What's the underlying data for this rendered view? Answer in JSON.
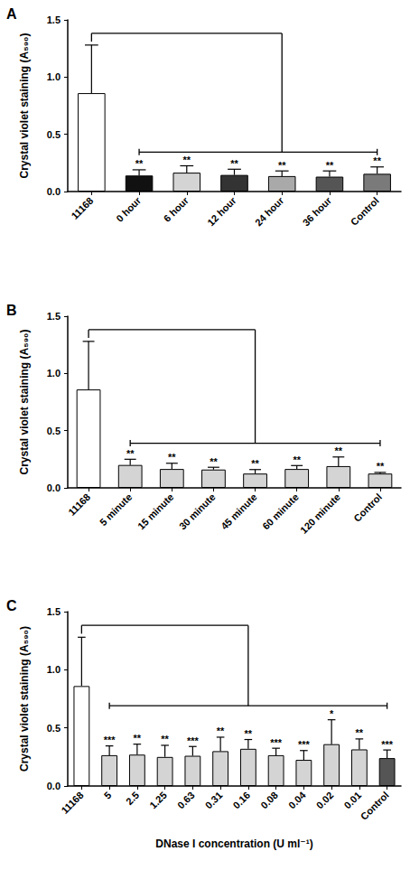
{
  "chart_data": [
    {
      "type": "bar",
      "title": "A",
      "y_label": "Crystal violet staining (A₅₉₀)",
      "categories": [
        "11168",
        "0 hour",
        "6 hour",
        "12 hour",
        "24 hour",
        "36 hour",
        "Control"
      ],
      "values": [
        0.86,
        0.14,
        0.165,
        0.145,
        0.135,
        0.13,
        0.155
      ],
      "errors": [
        0.42,
        0.05,
        0.06,
        0.05,
        0.045,
        0.05,
        0.06
      ],
      "significance": [
        null,
        "**",
        "**",
        "**",
        "**",
        "**",
        "**"
      ],
      "colors": [
        "#ffffff",
        "#111111",
        "#d4d4d4",
        "#333333",
        "#a9a9a9",
        "#555555",
        "#7a7a7a"
      ],
      "ylim": [
        0,
        1.5
      ],
      "yticks": [
        {
          "value": 0,
          "label": "0.0"
        },
        0.5,
        {
          "value": 1,
          "label": "1.0"
        },
        1.5
      ],
      "grid": false
    },
    {
      "type": "bar",
      "title": "B",
      "y_label": "Crystal violet staining (A₅₉₀)",
      "categories": [
        "11168",
        "5 minute",
        "15 minute",
        "30 minute",
        "45 minute",
        "60 minute",
        "120 minute",
        "Control"
      ],
      "values": [
        0.86,
        0.2,
        0.165,
        0.16,
        0.125,
        0.165,
        0.19,
        0.125
      ],
      "errors": [
        0.42,
        0.05,
        0.05,
        0.02,
        0.035,
        0.03,
        0.08,
        0.01
      ],
      "significance": [
        null,
        "**",
        "**",
        "**",
        "**",
        "**",
        "**",
        "**"
      ],
      "colors": [
        "#ffffff",
        "#d4d4d4",
        "#d4d4d4",
        "#d4d4d4",
        "#d4d4d4",
        "#d4d4d4",
        "#d4d4d4",
        "#d4d4d4"
      ],
      "ylim": [
        0,
        1.5
      ],
      "yticks": [
        {
          "value": 0,
          "label": "0.0"
        },
        0.5,
        {
          "value": 1,
          "label": "1.0"
        },
        1.5
      ],
      "grid": false
    },
    {
      "type": "bar",
      "title": "C",
      "y_label": "Crystal violet staining (A₅₉₀)",
      "x_label": "DNase I concentration (U ml⁻¹)",
      "categories": [
        "11168",
        "5",
        "2.5",
        "1.25",
        "0.63",
        "0.31",
        "0.16",
        "0.08",
        "0.04",
        "0.02",
        "0.01",
        "Control"
      ],
      "values": [
        0.86,
        0.265,
        0.27,
        0.25,
        0.26,
        0.3,
        0.32,
        0.265,
        0.225,
        0.36,
        0.315,
        0.24
      ],
      "errors": [
        0.42,
        0.08,
        0.09,
        0.1,
        0.08,
        0.12,
        0.08,
        0.06,
        0.08,
        0.21,
        0.09,
        0.07
      ],
      "significance": [
        null,
        "***",
        "**",
        "**",
        "***",
        "**",
        "**",
        "***",
        "***",
        "*",
        "**",
        "***"
      ],
      "colors": [
        "#ffffff",
        "#d4d4d4",
        "#d4d4d4",
        "#d4d4d4",
        "#d4d4d4",
        "#d4d4d4",
        "#d4d4d4",
        "#d4d4d4",
        "#d4d4d4",
        "#d4d4d4",
        "#d4d4d4",
        "#555555"
      ],
      "ylim": [
        0,
        1.5
      ],
      "yticks": [
        {
          "value": 0,
          "label": "0.0"
        },
        0.5,
        {
          "value": 1,
          "label": "1.0"
        },
        1.5
      ],
      "grid": false
    }
  ]
}
